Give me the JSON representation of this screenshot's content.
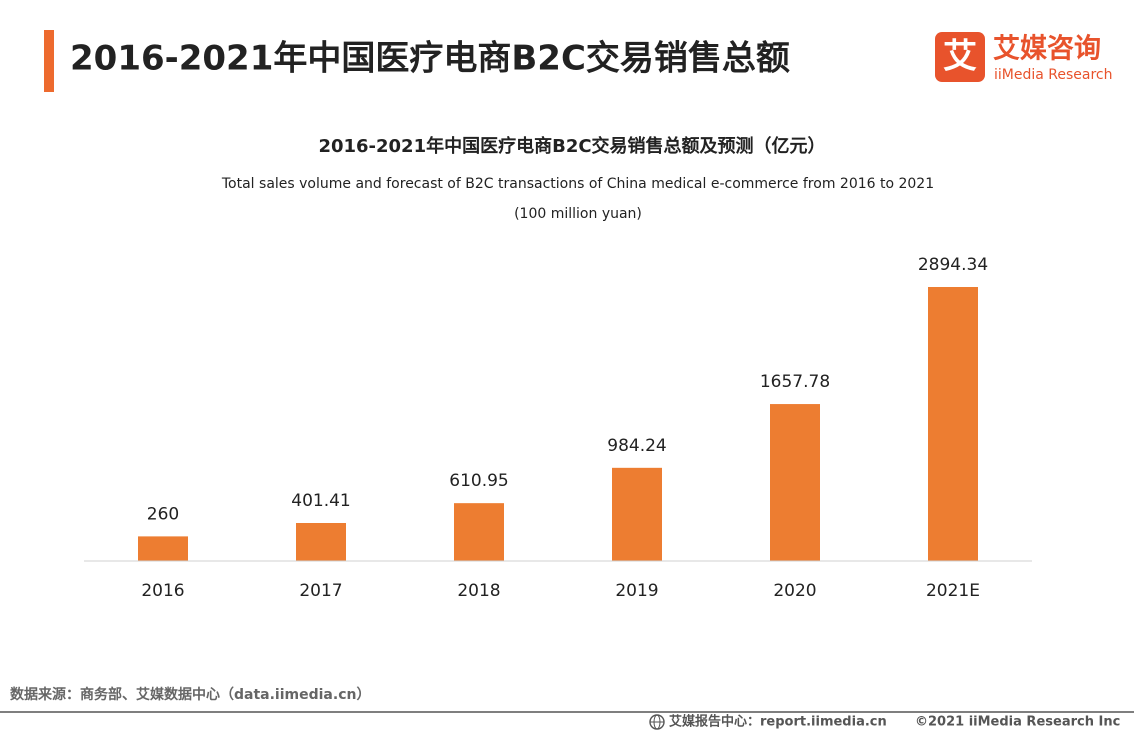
{
  "header": {
    "title": "2016-2021年中国医疗电商B2C交易销售总额",
    "logo_mark": "艾",
    "logo_cn": "艾媒咨询",
    "logo_en": "iiMedia Research"
  },
  "chart_data": {
    "type": "bar",
    "title": "2016-2021年中国医疗电商B2C交易销售总额及预测（亿元）",
    "subtitle": "Total sales volume and forecast of B2C transactions of China medical e-commerce from 2016 to 2021",
    "unit": "(100 million yuan)",
    "categories": [
      "2016",
      "2017",
      "2018",
      "2019",
      "2020",
      "2021E"
    ],
    "values": [
      260,
      401.41,
      610.95,
      984.24,
      1657.78,
      2894.34
    ],
    "color": "#ed7d31"
  },
  "source": "数据来源：商务部、艾媒数据中心（data.iimedia.cn）",
  "footer": {
    "report": "艾媒报告中心：report.iimedia.cn",
    "copyright": "©2021  iiMedia Research  Inc"
  }
}
